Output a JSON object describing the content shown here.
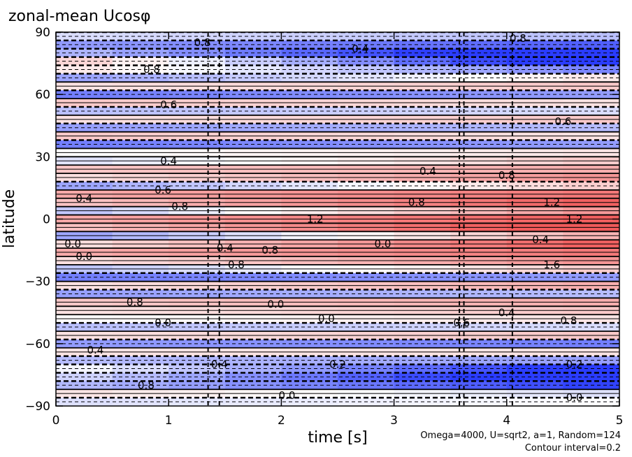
{
  "chart_data": {
    "type": "heatmap",
    "title": "zonal-mean Ucosφ",
    "xlabel": "time [s]",
    "ylabel": "latitude",
    "xlim": [
      0,
      5
    ],
    "ylim": [
      -90,
      90
    ],
    "x_ticks": [
      "0",
      "1",
      "2",
      "3",
      "4",
      "5"
    ],
    "y_ticks": [
      "90",
      "60",
      "30",
      "0",
      "−30",
      "−60",
      "−90"
    ],
    "x_tick_values": [
      0,
      1,
      2,
      3,
      4,
      5
    ],
    "y_tick_values": [
      90,
      60,
      30,
      0,
      -30,
      -60,
      -90
    ],
    "annotation_params": "Omega=4000, U=sqrt2, a=1, Random=124",
    "annotation_interval": "Contour interval=0.2",
    "contour_interval": 0.2,
    "colormap": {
      "negative": "#2a3cff",
      "zero": "#ffffff",
      "positive": "#f05a5a"
    },
    "latitude_profile": [
      {
        "lat": 88,
        "early": -0.2,
        "late": -0.4
      },
      {
        "lat": 84,
        "early": -0.6,
        "late": -1.0
      },
      {
        "lat": 80,
        "early": -0.4,
        "late": -1.6
      },
      {
        "lat": 76,
        "early": 0.4,
        "late": -1.6
      },
      {
        "lat": 72,
        "early": 0.2,
        "late": -0.8
      },
      {
        "lat": 68,
        "early": -0.6,
        "late": 0.2
      },
      {
        "lat": 64,
        "early": 0.2,
        "late": 0.4
      },
      {
        "lat": 60,
        "early": -0.8,
        "late": -0.6
      },
      {
        "lat": 56,
        "early": 0.4,
        "late": 0.2
      },
      {
        "lat": 52,
        "early": -0.4,
        "late": -0.2
      },
      {
        "lat": 48,
        "early": 0.2,
        "late": 0.4
      },
      {
        "lat": 44,
        "early": -0.6,
        "late": -0.4
      },
      {
        "lat": 40,
        "early": 0.4,
        "late": 0.2
      },
      {
        "lat": 36,
        "early": -0.8,
        "late": -0.6
      },
      {
        "lat": 32,
        "early": 0.0,
        "late": 0.2
      },
      {
        "lat": 28,
        "early": -0.2,
        "late": 0.4
      },
      {
        "lat": 24,
        "early": 0.4,
        "late": 0.6
      },
      {
        "lat": 20,
        "early": 0.2,
        "late": 0.8
      },
      {
        "lat": 16,
        "early": -0.6,
        "late": 0.4
      },
      {
        "lat": 12,
        "early": 0.6,
        "late": 1.0
      },
      {
        "lat": 8,
        "early": 0.4,
        "late": 1.2
      },
      {
        "lat": 4,
        "early": -0.4,
        "late": 0.8
      },
      {
        "lat": 0,
        "early": 0.6,
        "late": 1.2
      },
      {
        "lat": -4,
        "early": 0.4,
        "late": 1.4
      },
      {
        "lat": -8,
        "early": -0.6,
        "late": 0.6
      },
      {
        "lat": -12,
        "early": 0.2,
        "late": 1.2
      },
      {
        "lat": -16,
        "early": 0.6,
        "late": 1.0
      },
      {
        "lat": -20,
        "early": 0.2,
        "late": 0.8
      },
      {
        "lat": -24,
        "early": -0.4,
        "late": 0.4
      },
      {
        "lat": -28,
        "early": -0.8,
        "late": -0.6
      },
      {
        "lat": -32,
        "early": 0.2,
        "late": 0.6
      },
      {
        "lat": -36,
        "early": -0.6,
        "late": -0.4
      },
      {
        "lat": -40,
        "early": 0.4,
        "late": 0.6
      },
      {
        "lat": -44,
        "early": 0.2,
        "late": 0.4
      },
      {
        "lat": -48,
        "early": 0.0,
        "late": 0.2
      },
      {
        "lat": -52,
        "early": -0.4,
        "late": -0.2
      },
      {
        "lat": -56,
        "early": 0.2,
        "late": 0.4
      },
      {
        "lat": -60,
        "early": -0.6,
        "late": -0.8
      },
      {
        "lat": -64,
        "early": 0.2,
        "late": 0.2
      },
      {
        "lat": -68,
        "early": -0.4,
        "late": -0.6
      },
      {
        "lat": -72,
        "early": 0.0,
        "late": -1.4
      },
      {
        "lat": -76,
        "early": -0.2,
        "late": -1.6
      },
      {
        "lat": -80,
        "early": -0.4,
        "late": -1.2
      },
      {
        "lat": -84,
        "early": 0.2,
        "late": -0.2
      },
      {
        "lat": -88,
        "early": -0.2,
        "late": 0.0
      }
    ],
    "contour_labels": [
      {
        "t": 0.85,
        "lat": 72,
        "text": "0.8"
      },
      {
        "t": 1.3,
        "lat": 85,
        "text": "0.8"
      },
      {
        "t": 2.7,
        "lat": 82,
        "text": "0.4"
      },
      {
        "t": 4.1,
        "lat": 87,
        "text": "0.8"
      },
      {
        "t": 1.0,
        "lat": 55,
        "text": "0.6"
      },
      {
        "t": 4.5,
        "lat": 47,
        "text": "0.6"
      },
      {
        "t": 1.0,
        "lat": 28,
        "text": "0.4"
      },
      {
        "t": 3.3,
        "lat": 23,
        "text": "0.4"
      },
      {
        "t": 4.0,
        "lat": 21,
        "text": "0.8"
      },
      {
        "t": 0.25,
        "lat": 10,
        "text": "0.4"
      },
      {
        "t": 0.95,
        "lat": 14,
        "text": "0.6"
      },
      {
        "t": 1.1,
        "lat": 6,
        "text": "0.8"
      },
      {
        "t": 2.3,
        "lat": 0,
        "text": "1.2"
      },
      {
        "t": 3.2,
        "lat": 8,
        "text": "0.8"
      },
      {
        "t": 4.4,
        "lat": 8,
        "text": "1.2"
      },
      {
        "t": 4.6,
        "lat": 0,
        "text": "1.2"
      },
      {
        "t": 0.15,
        "lat": -12,
        "text": "0.0"
      },
      {
        "t": 0.25,
        "lat": -18,
        "text": "0.0"
      },
      {
        "t": 1.5,
        "lat": -14,
        "text": "0.4"
      },
      {
        "t": 1.9,
        "lat": -15,
        "text": "0.8"
      },
      {
        "t": 2.9,
        "lat": -12,
        "text": "0.0"
      },
      {
        "t": 4.3,
        "lat": -10,
        "text": "0.4"
      },
      {
        "t": 1.6,
        "lat": -22,
        "text": "0.8"
      },
      {
        "t": 4.4,
        "lat": -22,
        "text": "1.6"
      },
      {
        "t": 0.7,
        "lat": -40,
        "text": "0.8"
      },
      {
        "t": 1.95,
        "lat": -41,
        "text": "0.0"
      },
      {
        "t": 2.4,
        "lat": -48,
        "text": "0.0"
      },
      {
        "t": 4.0,
        "lat": -45,
        "text": "0.4"
      },
      {
        "t": 4.55,
        "lat": -49,
        "text": "0.8"
      },
      {
        "t": 0.95,
        "lat": -50,
        "text": "0.0"
      },
      {
        "t": 3.6,
        "lat": -50,
        "text": "0.6"
      },
      {
        "t": 0.35,
        "lat": -63,
        "text": "0.4"
      },
      {
        "t": 1.45,
        "lat": -70,
        "text": "0.4"
      },
      {
        "t": 2.5,
        "lat": -70,
        "text": "0.2"
      },
      {
        "t": 4.6,
        "lat": -70,
        "text": "0.2"
      },
      {
        "t": 0.8,
        "lat": -80,
        "text": "0.8"
      },
      {
        "t": 2.05,
        "lat": -85,
        "text": "0.0"
      },
      {
        "t": 4.6,
        "lat": -86,
        "text": "0.0"
      }
    ]
  }
}
